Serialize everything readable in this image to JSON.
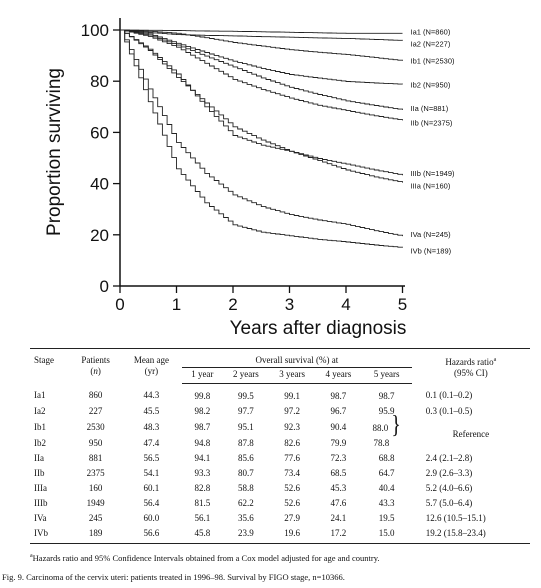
{
  "chart_data": {
    "type": "line",
    "title": "",
    "xlabel": "Years after diagnosis",
    "ylabel": "Proportion surviving",
    "xlim": [
      0,
      5.5
    ],
    "ylim": [
      0,
      100
    ],
    "xticks": [
      0,
      1,
      2,
      3,
      4,
      5
    ],
    "yticks": [
      0,
      20,
      40,
      60,
      80,
      100
    ],
    "grid": false,
    "legend": "labels at right end of each line",
    "x": [
      0,
      0.5,
      1,
      1.5,
      2,
      2.5,
      3,
      3.5,
      4,
      4.5,
      5
    ],
    "series": [
      {
        "name": "Ia1 (N=860)",
        "values": [
          100,
          99.9,
          99.8,
          99.6,
          99.5,
          99.3,
          99.1,
          98.9,
          98.7,
          98.7,
          98.7
        ]
      },
      {
        "name": "Ia2 (N=227)",
        "values": [
          100,
          99.0,
          98.2,
          97.9,
          97.7,
          97.4,
          97.2,
          96.9,
          96.7,
          96.3,
          95.9
        ]
      },
      {
        "name": "Ib1 (N=2530)",
        "values": [
          100,
          99.5,
          98.7,
          97.0,
          95.1,
          93.7,
          92.3,
          91.3,
          90.4,
          89.2,
          88.0
        ]
      },
      {
        "name": "Ib2 (N=950)",
        "values": [
          100,
          98.5,
          94.8,
          91.2,
          87.8,
          85.0,
          82.6,
          81.2,
          79.9,
          79.3,
          78.8
        ]
      },
      {
        "name": "IIa (N=881)",
        "values": [
          100,
          98.0,
          94.1,
          89.8,
          85.6,
          81.3,
          77.6,
          74.8,
          72.3,
          70.5,
          68.8
        ]
      },
      {
        "name": "IIb (N=2375)",
        "values": [
          100,
          97.5,
          93.3,
          87.0,
          80.7,
          76.8,
          73.4,
          70.6,
          68.5,
          66.5,
          64.7
        ]
      },
      {
        "name": "IIIb (N=1949)",
        "values": [
          100,
          92.0,
          81.5,
          71.5,
          62.2,
          57.0,
          52.6,
          49.8,
          47.6,
          45.3,
          43.3
        ]
      },
      {
        "name": "IIIa (N=160)",
        "values": [
          100,
          92.5,
          82.8,
          70.0,
          58.8,
          55.0,
          52.6,
          49.0,
          45.3,
          42.6,
          40.4
        ]
      },
      {
        "name": "IVa (N=245)",
        "values": [
          100,
          77.0,
          56.1,
          44.0,
          35.6,
          31.0,
          27.9,
          25.8,
          24.1,
          21.6,
          19.5
        ]
      },
      {
        "name": "IVb (N=189)",
        "values": [
          100,
          72.0,
          45.8,
          32.5,
          23.9,
          21.0,
          19.6,
          18.2,
          17.2,
          16.0,
          15.0
        ]
      }
    ]
  },
  "table": {
    "headers": {
      "stage": "Stage",
      "patients": "Patients",
      "patients_n": "n",
      "mean_age": "Mean age",
      "mean_age_unit": "(yr)",
      "overall": "Overall survival (%) at",
      "years": [
        "1 year",
        "2 years",
        "3 years",
        "4 years",
        "5 years"
      ],
      "hazards": "Hazards ratio",
      "hazards_sup": "a",
      "hazards_ci": "(95% CI)"
    },
    "rows": [
      {
        "stage": "Ia1",
        "patients": "860",
        "age": "44.3",
        "s": [
          "99.8",
          "99.5",
          "99.1",
          "98.7",
          "98.7"
        ],
        "hr": "0.1 (0.1–0.2)"
      },
      {
        "stage": "Ia2",
        "patients": "227",
        "age": "45.5",
        "s": [
          "98.2",
          "97.7",
          "97.2",
          "96.7",
          "95.9"
        ],
        "hr": "0.3 (0.1–0.5)"
      },
      {
        "stage": "Ib1",
        "patients": "2530",
        "age": "48.3",
        "s": [
          "98.7",
          "95.1",
          "92.3",
          "90.4",
          "88.0"
        ],
        "hr": "Reference"
      },
      {
        "stage": "Ib2",
        "patients": "950",
        "age": "47.4",
        "s": [
          "94.8",
          "87.8",
          "82.6",
          "79.9",
          "78.8"
        ],
        "hr": ""
      },
      {
        "stage": "IIa",
        "patients": "881",
        "age": "56.5",
        "s": [
          "94.1",
          "85.6",
          "77.6",
          "72.3",
          "68.8"
        ],
        "hr": "2.4 (2.1–2.8)"
      },
      {
        "stage": "IIb",
        "patients": "2375",
        "age": "54.1",
        "s": [
          "93.3",
          "80.7",
          "73.4",
          "68.5",
          "64.7"
        ],
        "hr": "2.9 (2.6–3.3)"
      },
      {
        "stage": "IIIa",
        "patients": "160",
        "age": "60.1",
        "s": [
          "82.8",
          "58.8",
          "52.6",
          "45.3",
          "40.4"
        ],
        "hr": "5.2 (4.0–6.6)"
      },
      {
        "stage": "IIIb",
        "patients": "1949",
        "age": "56.4",
        "s": [
          "81.5",
          "62.2",
          "52.6",
          "47.6",
          "43.3"
        ],
        "hr": "5.7 (5.0–6.4)"
      },
      {
        "stage": "IVa",
        "patients": "245",
        "age": "60.0",
        "s": [
          "56.1",
          "35.6",
          "27.9",
          "24.1",
          "19.5"
        ],
        "hr": "12.6 (10.5–15.1)"
      },
      {
        "stage": "IVb",
        "patients": "189",
        "age": "56.6",
        "s": [
          "45.8",
          "23.9",
          "19.6",
          "17.2",
          "15.0"
        ],
        "hr": "19.2 (15.8–23.4)"
      }
    ],
    "footnote_sup": "a",
    "footnote": "Hazards ratio and 95% Confidence Intervals obtained from a Cox model adjusted for age and country."
  },
  "caption": "Fig. 9. Carcinoma of the cervix uteri: patients treated in 1996–98. Survival by FIGO stage, n=10366."
}
